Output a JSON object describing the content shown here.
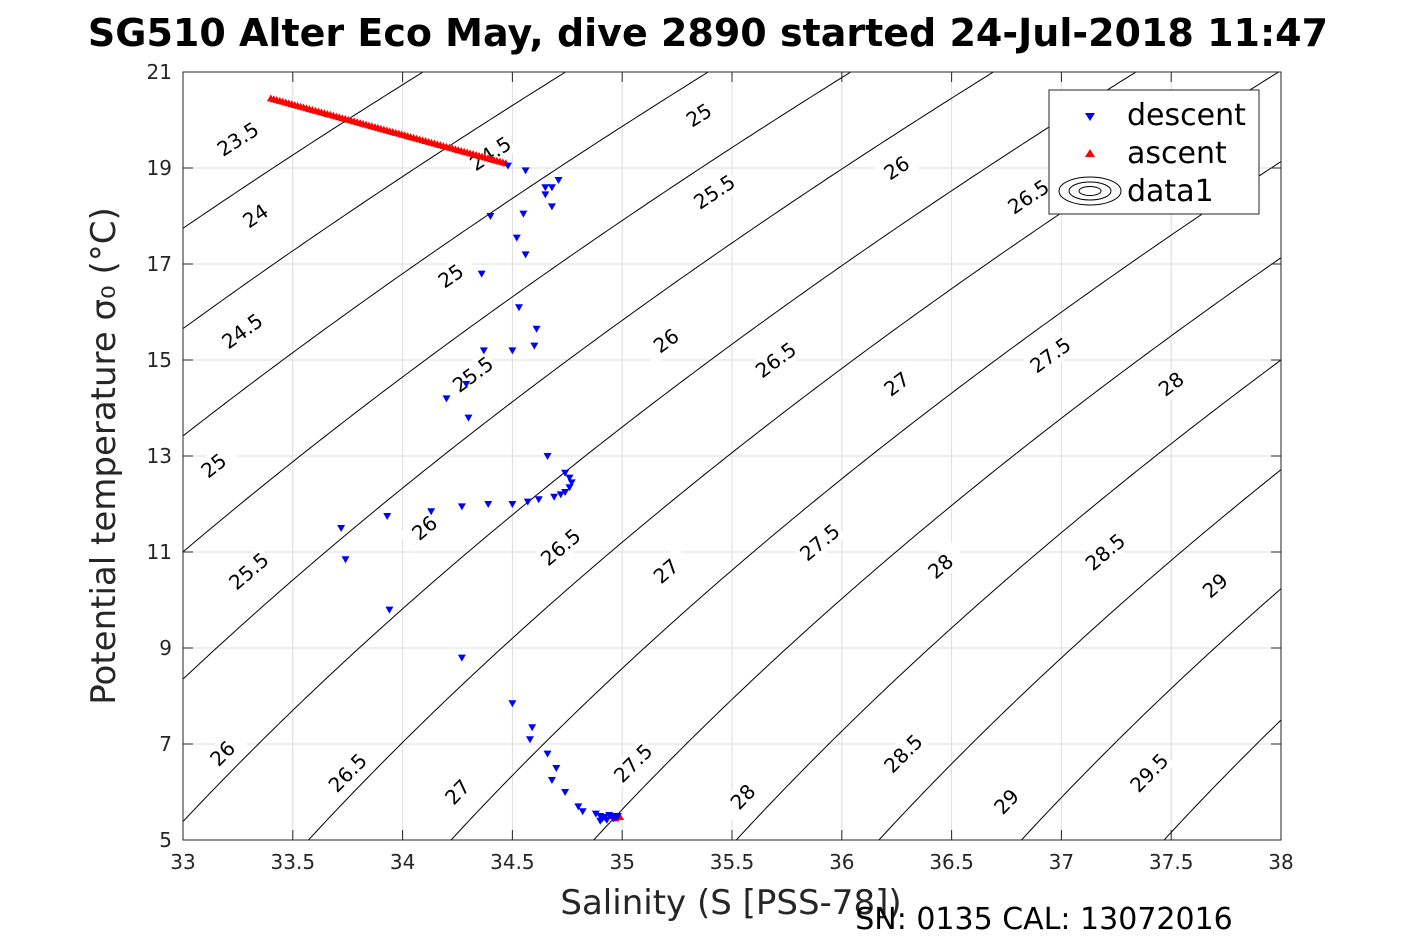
{
  "chart_data": {
    "type": "scatter",
    "title": "SG510 Alter Eco May, dive 2890 started 24-Jul-2018 11:47",
    "xlabel": "Salinity (S [PSS-78])",
    "ylabel": "Potential temperature σ₀ (°C)",
    "footer": "SN: 0135  CAL: 13072016",
    "xlim": [
      33,
      38
    ],
    "ylim": [
      5,
      21
    ],
    "xticks": [
      "33",
      "33.5",
      "34",
      "34.5",
      "35",
      "35.5",
      "36",
      "36.5",
      "37",
      "37.5",
      "38"
    ],
    "yticks": [
      "5",
      "7",
      "9",
      "11",
      "13",
      "15",
      "17",
      "19",
      "21"
    ],
    "grid": true,
    "legend_position": "top-right",
    "legend": [
      {
        "label": "descent",
        "marker": "triangle-down",
        "color": "#0000ff"
      },
      {
        "label": "ascent",
        "marker": "triangle-up",
        "color": "#ff0000"
      },
      {
        "label": "data1",
        "marker": "contour",
        "color": "#000000"
      }
    ],
    "series": [
      {
        "name": "descent",
        "color": "#0000ff",
        "marker": "triangle-down",
        "points": [
          [
            34.48,
            19.05
          ],
          [
            34.56,
            18.95
          ],
          [
            34.71,
            18.75
          ],
          [
            34.65,
            18.6
          ],
          [
            34.68,
            18.6
          ],
          [
            34.65,
            18.45
          ],
          [
            34.68,
            18.2
          ],
          [
            34.4,
            18.0
          ],
          [
            34.55,
            18.05
          ],
          [
            34.52,
            17.55
          ],
          [
            34.56,
            17.2
          ],
          [
            34.36,
            16.8
          ],
          [
            34.53,
            16.1
          ],
          [
            34.61,
            15.65
          ],
          [
            34.6,
            15.3
          ],
          [
            34.37,
            15.2
          ],
          [
            34.5,
            15.2
          ],
          [
            34.29,
            14.5
          ],
          [
            34.2,
            14.2
          ],
          [
            34.3,
            13.8
          ],
          [
            34.66,
            13.0
          ],
          [
            34.74,
            12.65
          ],
          [
            34.76,
            12.55
          ],
          [
            34.77,
            12.45
          ],
          [
            34.76,
            12.35
          ],
          [
            34.74,
            12.25
          ],
          [
            34.72,
            12.2
          ],
          [
            34.69,
            12.15
          ],
          [
            34.62,
            12.1
          ],
          [
            34.57,
            12.05
          ],
          [
            34.5,
            12.0
          ],
          [
            34.39,
            12.0
          ],
          [
            34.27,
            11.95
          ],
          [
            34.13,
            11.85
          ],
          [
            33.93,
            11.75
          ],
          [
            33.72,
            11.5
          ],
          [
            33.74,
            10.85
          ],
          [
            33.94,
            9.8
          ],
          [
            34.27,
            8.8
          ],
          [
            34.5,
            7.85
          ],
          [
            34.59,
            7.35
          ],
          [
            34.58,
            7.1
          ],
          [
            34.66,
            6.8
          ],
          [
            34.7,
            6.5
          ],
          [
            34.68,
            6.25
          ],
          [
            34.74,
            6.0
          ],
          [
            34.8,
            5.7
          ],
          [
            34.82,
            5.6
          ],
          [
            34.88,
            5.55
          ],
          [
            34.9,
            5.5
          ],
          [
            34.92,
            5.48
          ],
          [
            34.95,
            5.5
          ],
          [
            34.98,
            5.5
          ],
          [
            34.9,
            5.4
          ],
          [
            34.93,
            5.42
          ],
          [
            34.91,
            5.45
          ],
          [
            34.96,
            5.45
          ],
          [
            34.94,
            5.52
          ],
          [
            34.97,
            5.47
          ]
        ]
      },
      {
        "name": "ascent",
        "color": "#ff0000",
        "marker": "triangle-up",
        "points_from": [
          33.4,
          20.45
        ],
        "points_to": [
          34.47,
          19.1
        ],
        "points_count": 80,
        "extra_points": [
          [
            34.99,
            5.48
          ],
          [
            34.95,
            5.5
          ],
          [
            34.97,
            5.45
          ]
        ]
      }
    ],
    "contours": {
      "levels": [
        "23.5",
        "24",
        "24.5",
        "25",
        "25.5",
        "26",
        "26.5",
        "27",
        "27.5",
        "28",
        "28.5",
        "29",
        "29.5"
      ],
      "label_instances": [
        {
          "text": "23.5",
          "s": 33.25,
          "t": 19.6
        },
        {
          "text": "24",
          "s": 33.33,
          "t": 18.0
        },
        {
          "text": "24.5",
          "s": 33.27,
          "t": 15.6
        },
        {
          "text": "25",
          "s": 33.14,
          "t": 12.8
        },
        {
          "text": "25.5",
          "s": 33.3,
          "t": 10.6
        },
        {
          "text": "26",
          "s": 33.18,
          "t": 6.8
        },
        {
          "text": "26.5",
          "s": 33.75,
          "t": 6.4
        },
        {
          "text": "27",
          "s": 34.25,
          "t": 6.0
        },
        {
          "text": "24.5",
          "s": 34.4,
          "t": 19.3
        },
        {
          "text": "25",
          "s": 34.22,
          "t": 16.75
        },
        {
          "text": "25.5",
          "s": 34.32,
          "t": 14.7
        },
        {
          "text": "26",
          "s": 34.1,
          "t": 11.5
        },
        {
          "text": "26.5",
          "s": 34.72,
          "t": 11.1
        },
        {
          "text": "27",
          "s": 35.2,
          "t": 10.6
        },
        {
          "text": "27.5",
          "s": 35.05,
          "t": 6.6
        },
        {
          "text": "28",
          "s": 35.55,
          "t": 5.9
        },
        {
          "text": "25",
          "s": 35.35,
          "t": 20.1
        },
        {
          "text": "25.5",
          "s": 35.42,
          "t": 18.5
        },
        {
          "text": "26",
          "s": 35.2,
          "t": 15.4
        },
        {
          "text": "26.5",
          "s": 35.7,
          "t": 15.0
        },
        {
          "text": "27",
          "s": 36.25,
          "t": 14.5
        },
        {
          "text": "27.5",
          "s": 35.9,
          "t": 11.2
        },
        {
          "text": "28",
          "s": 36.45,
          "t": 10.7
        },
        {
          "text": "28.5",
          "s": 36.28,
          "t": 6.8
        },
        {
          "text": "29",
          "s": 36.75,
          "t": 5.8
        },
        {
          "text": "26",
          "s": 36.25,
          "t": 19.0
        },
        {
          "text": "26.5",
          "s": 36.85,
          "t": 18.4
        },
        {
          "text": "27.5",
          "s": 36.95,
          "t": 15.1
        },
        {
          "text": "28",
          "s": 37.5,
          "t": 14.5
        },
        {
          "text": "28.5",
          "s": 37.2,
          "t": 11.0
        },
        {
          "text": "29",
          "s": 37.7,
          "t": 10.3
        },
        {
          "text": "29.5",
          "s": 37.4,
          "t": 6.4
        }
      ]
    }
  }
}
